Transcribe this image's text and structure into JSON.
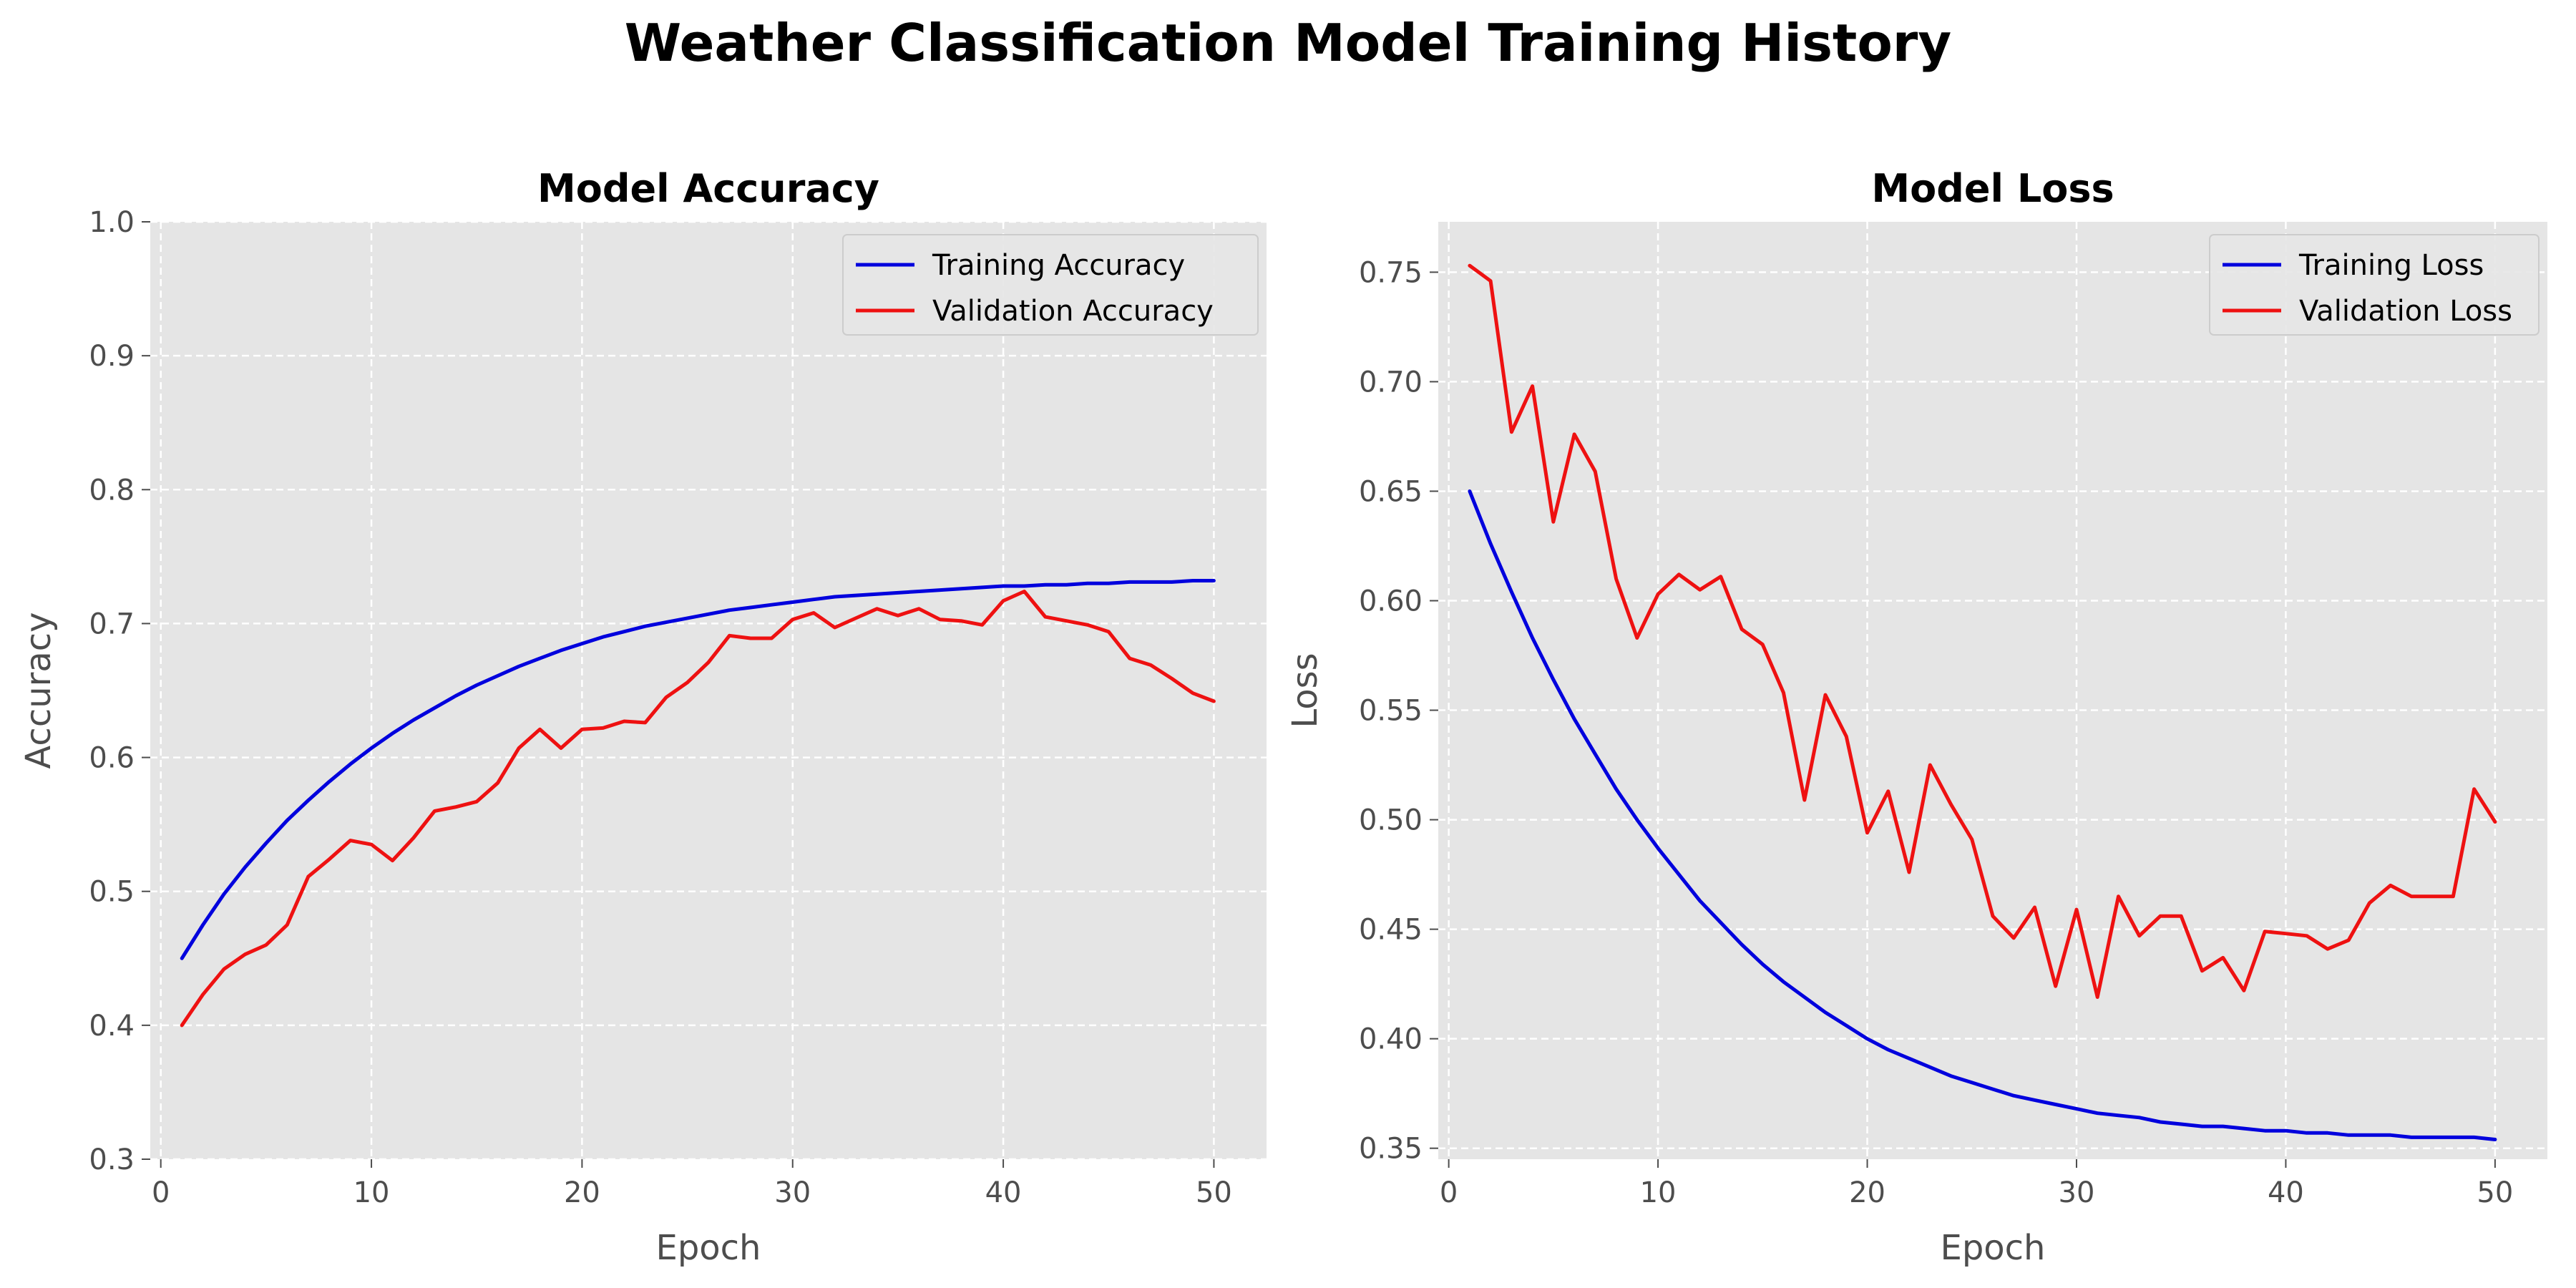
{
  "figure": {
    "suptitle": "Weather Classification Model Training History"
  },
  "colors": {
    "training": "#0000dd",
    "validation": "#ee1111",
    "plot_bg": "#e5e5e5",
    "grid": "#ffffff"
  },
  "chart_data": [
    {
      "type": "line",
      "title": "Model Accuracy",
      "xlabel": "Epoch",
      "ylabel": "Accuracy",
      "xlim": [
        -0.5,
        52.5
      ],
      "ylim": [
        0.3,
        1.0
      ],
      "xticks": [
        0,
        10,
        20,
        30,
        40,
        50
      ],
      "yticks": [
        0.3,
        0.4,
        0.5,
        0.6,
        0.7,
        0.8,
        0.9,
        1.0
      ],
      "ytick_labels": [
        "0.3",
        "0.4",
        "0.5",
        "0.6",
        "0.7",
        "0.8",
        "0.9",
        "1.0"
      ],
      "grid": true,
      "legend_position": "top-right",
      "x": [
        1,
        2,
        3,
        4,
        5,
        6,
        7,
        8,
        9,
        10,
        11,
        12,
        13,
        14,
        15,
        16,
        17,
        18,
        19,
        20,
        21,
        22,
        23,
        24,
        25,
        26,
        27,
        28,
        29,
        30,
        31,
        32,
        33,
        34,
        35,
        36,
        37,
        38,
        39,
        40,
        41,
        42,
        43,
        44,
        45,
        46,
        47,
        48,
        49,
        50
      ],
      "series": [
        {
          "name": "Training Accuracy",
          "color": "#0000dd",
          "values": [
            0.45,
            0.475,
            0.498,
            0.518,
            0.536,
            0.553,
            0.568,
            0.582,
            0.595,
            0.607,
            0.618,
            0.628,
            0.637,
            0.646,
            0.654,
            0.661,
            0.668,
            0.674,
            0.68,
            0.685,
            0.69,
            0.694,
            0.698,
            0.701,
            0.704,
            0.707,
            0.71,
            0.712,
            0.714,
            0.716,
            0.718,
            0.72,
            0.721,
            0.722,
            0.723,
            0.724,
            0.725,
            0.726,
            0.727,
            0.728,
            0.728,
            0.729,
            0.729,
            0.73,
            0.73,
            0.731,
            0.731,
            0.731,
            0.732,
            0.732
          ]
        },
        {
          "name": "Validation Accuracy",
          "color": "#ee1111",
          "values": [
            0.4,
            0.423,
            0.442,
            0.453,
            0.46,
            0.475,
            0.511,
            0.524,
            0.538,
            0.535,
            0.523,
            0.54,
            0.56,
            0.563,
            0.567,
            0.581,
            0.607,
            0.621,
            0.607,
            0.621,
            0.622,
            0.627,
            0.626,
            0.645,
            0.656,
            0.671,
            0.691,
            0.689,
            0.689,
            0.703,
            0.708,
            0.697,
            0.704,
            0.711,
            0.706,
            0.711,
            0.703,
            0.702,
            0.699,
            0.717,
            0.724,
            0.705,
            0.702,
            0.699,
            0.694,
            0.674,
            0.669,
            0.659,
            0.648,
            0.642
          ]
        }
      ]
    },
    {
      "type": "line",
      "title": "Model Loss",
      "xlabel": "Epoch",
      "ylabel": "Loss",
      "xlim": [
        -0.5,
        52.5
      ],
      "ylim": [
        0.345,
        0.773
      ],
      "xticks": [
        0,
        10,
        20,
        30,
        40,
        50
      ],
      "yticks": [
        0.35,
        0.4,
        0.45,
        0.5,
        0.55,
        0.6,
        0.65,
        0.7,
        0.75
      ],
      "ytick_labels": [
        "0.35",
        "0.40",
        "0.45",
        "0.50",
        "0.55",
        "0.60",
        "0.65",
        "0.70",
        "0.75"
      ],
      "grid": true,
      "legend_position": "top-right",
      "x": [
        1,
        2,
        3,
        4,
        5,
        6,
        7,
        8,
        9,
        10,
        11,
        12,
        13,
        14,
        15,
        16,
        17,
        18,
        19,
        20,
        21,
        22,
        23,
        24,
        25,
        26,
        27,
        28,
        29,
        30,
        31,
        32,
        33,
        34,
        35,
        36,
        37,
        38,
        39,
        40,
        41,
        42,
        43,
        44,
        45,
        46,
        47,
        48,
        49,
        50
      ],
      "series": [
        {
          "name": "Training Loss",
          "color": "#0000dd",
          "values": [
            0.65,
            0.626,
            0.604,
            0.583,
            0.564,
            0.546,
            0.53,
            0.514,
            0.5,
            0.487,
            0.475,
            0.463,
            0.453,
            0.443,
            0.434,
            0.426,
            0.419,
            0.412,
            0.406,
            0.4,
            0.395,
            0.391,
            0.387,
            0.383,
            0.38,
            0.377,
            0.374,
            0.372,
            0.37,
            0.368,
            0.366,
            0.365,
            0.364,
            0.362,
            0.361,
            0.36,
            0.36,
            0.359,
            0.358,
            0.358,
            0.357,
            0.357,
            0.356,
            0.356,
            0.356,
            0.355,
            0.355,
            0.355,
            0.355,
            0.354
          ]
        },
        {
          "name": "Validation Loss",
          "color": "#ee1111",
          "values": [
            0.753,
            0.746,
            0.677,
            0.698,
            0.636,
            0.676,
            0.659,
            0.61,
            0.583,
            0.603,
            0.612,
            0.605,
            0.611,
            0.587,
            0.58,
            0.558,
            0.509,
            0.557,
            0.538,
            0.494,
            0.513,
            0.476,
            0.525,
            0.507,
            0.491,
            0.456,
            0.446,
            0.46,
            0.424,
            0.459,
            0.419,
            0.465,
            0.447,
            0.456,
            0.456,
            0.431,
            0.437,
            0.422,
            0.449,
            0.448,
            0.447,
            0.441,
            0.445,
            0.462,
            0.47,
            0.465,
            0.465,
            0.465,
            0.514,
            0.499
          ]
        }
      ]
    }
  ]
}
